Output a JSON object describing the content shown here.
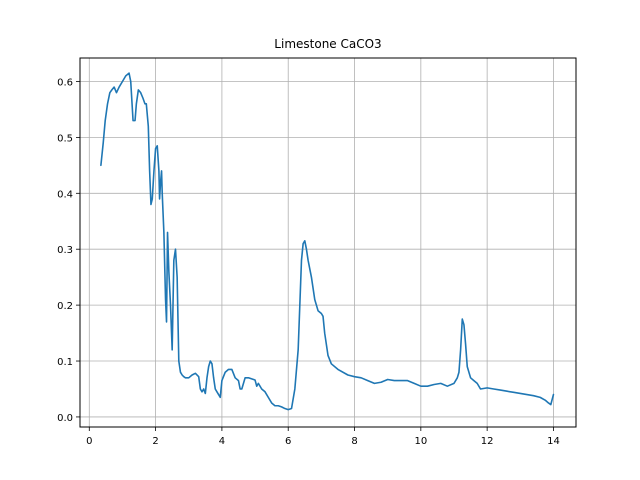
{
  "chart_data": {
    "type": "line",
    "title": "Limestone CaCO3",
    "xlabel": "",
    "ylabel": "",
    "xlim": [
      -0.28,
      14.68
    ],
    "ylim": [
      -0.018,
      0.642
    ],
    "xticks": [
      0,
      2,
      4,
      6,
      8,
      10,
      12,
      14
    ],
    "xtick_labels": [
      "0",
      "2",
      "4",
      "6",
      "8",
      "10",
      "12",
      "14"
    ],
    "yticks": [
      0.0,
      0.1,
      0.2,
      0.3,
      0.4,
      0.5,
      0.6
    ],
    "ytick_labels": [
      "0.0",
      "0.1",
      "0.2",
      "0.3",
      "0.4",
      "0.5",
      "0.6"
    ],
    "grid": true,
    "legend": "none",
    "colors": {
      "line": "#1f77b4",
      "grid": "#b0b0b0",
      "axes": "#000000"
    },
    "series": [
      {
        "x": [
          0.35,
          0.42,
          0.48,
          0.55,
          0.62,
          0.68,
          0.75,
          0.82,
          0.9,
          1.0,
          1.1,
          1.2,
          1.25,
          1.32,
          1.38,
          1.42,
          1.48,
          1.55,
          1.62,
          1.68,
          1.72,
          1.78,
          1.82,
          1.86,
          1.9,
          1.95,
          2.0,
          2.05,
          2.1,
          2.12,
          2.15,
          2.18,
          2.2,
          2.25,
          2.3,
          2.33,
          2.36,
          2.4,
          2.45,
          2.5,
          2.55,
          2.6,
          2.65,
          2.7,
          2.75,
          2.8,
          2.85,
          2.9,
          3.0,
          3.1,
          3.2,
          3.3,
          3.35,
          3.4,
          3.45,
          3.5,
          3.55,
          3.6,
          3.65,
          3.7,
          3.75,
          3.8,
          3.85,
          3.9,
          3.95,
          4.0,
          4.1,
          4.2,
          4.3,
          4.4,
          4.5,
          4.55,
          4.6,
          4.7,
          4.8,
          4.9,
          5.0,
          5.05,
          5.1,
          5.2,
          5.3,
          5.4,
          5.5,
          5.6,
          5.7,
          5.8,
          5.9,
          6.0,
          6.1,
          6.2,
          6.3,
          6.4,
          6.45,
          6.5,
          6.55,
          6.6,
          6.7,
          6.8,
          6.9,
          7.0,
          7.05,
          7.1,
          7.2,
          7.3,
          7.5,
          7.8,
          8.0,
          8.2,
          8.4,
          8.6,
          8.8,
          9.0,
          9.2,
          9.4,
          9.6,
          9.8,
          10.0,
          10.2,
          10.4,
          10.6,
          10.8,
          11.0,
          11.1,
          11.15,
          11.2,
          11.25,
          11.3,
          11.35,
          11.4,
          11.5,
          11.6,
          11.7,
          11.8,
          12.0,
          12.2,
          12.4,
          12.6,
          12.8,
          13.0,
          13.2,
          13.4,
          13.6,
          13.75,
          13.85,
          13.92,
          14.0
        ],
        "y": [
          0.45,
          0.49,
          0.53,
          0.56,
          0.58,
          0.585,
          0.59,
          0.58,
          0.59,
          0.6,
          0.61,
          0.615,
          0.6,
          0.53,
          0.53,
          0.56,
          0.585,
          0.58,
          0.57,
          0.56,
          0.56,
          0.52,
          0.44,
          0.38,
          0.39,
          0.44,
          0.48,
          0.485,
          0.44,
          0.39,
          0.42,
          0.44,
          0.4,
          0.33,
          0.21,
          0.17,
          0.33,
          0.26,
          0.2,
          0.12,
          0.28,
          0.3,
          0.25,
          0.1,
          0.08,
          0.075,
          0.072,
          0.07,
          0.07,
          0.075,
          0.078,
          0.072,
          0.05,
          0.045,
          0.05,
          0.042,
          0.07,
          0.09,
          0.1,
          0.095,
          0.07,
          0.05,
          0.045,
          0.04,
          0.035,
          0.065,
          0.08,
          0.085,
          0.085,
          0.07,
          0.065,
          0.05,
          0.05,
          0.07,
          0.07,
          0.068,
          0.066,
          0.055,
          0.06,
          0.05,
          0.045,
          0.035,
          0.025,
          0.02,
          0.02,
          0.018,
          0.015,
          0.013,
          0.015,
          0.05,
          0.12,
          0.28,
          0.31,
          0.315,
          0.3,
          0.28,
          0.25,
          0.21,
          0.19,
          0.185,
          0.18,
          0.15,
          0.11,
          0.095,
          0.085,
          0.075,
          0.072,
          0.07,
          0.065,
          0.06,
          0.062,
          0.067,
          0.065,
          0.065,
          0.065,
          0.06,
          0.055,
          0.055,
          0.058,
          0.06,
          0.055,
          0.06,
          0.07,
          0.08,
          0.12,
          0.175,
          0.165,
          0.13,
          0.09,
          0.07,
          0.065,
          0.06,
          0.05,
          0.052,
          0.05,
          0.048,
          0.046,
          0.044,
          0.042,
          0.04,
          0.038,
          0.035,
          0.03,
          0.025,
          0.022,
          0.04
        ]
      }
    ]
  }
}
